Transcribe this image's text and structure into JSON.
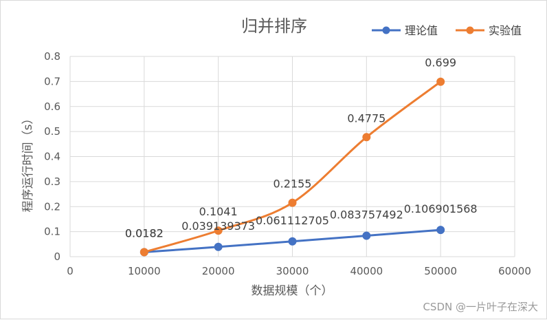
{
  "chart_data": {
    "type": "scatter",
    "title": "归并排序",
    "xlabel": "数据规模（个）",
    "ylabel": "程序运行时间（s）",
    "xlim": [
      0,
      60000
    ],
    "ylim": [
      0,
      0.8
    ],
    "x_ticks": [
      "0",
      "10000",
      "20000",
      "30000",
      "40000",
      "50000",
      "60000"
    ],
    "y_ticks": [
      "0",
      "0.1",
      "0.2",
      "0.3",
      "0.4",
      "0.5",
      "0.6",
      "0.7",
      "0.8"
    ],
    "grid": true,
    "legend_position": "top-right",
    "series": [
      {
        "name": "理论值",
        "color": "#4472c4",
        "x": [
          10000,
          20000,
          30000,
          40000,
          50000
        ],
        "y": [
          0.0182,
          0.039139373,
          0.061112705,
          0.083757492,
          0.106901568
        ],
        "labels": [
          "0.0182",
          "0.039139373",
          "0.061112705",
          "0.083757492",
          "0.106901568"
        ]
      },
      {
        "name": "实验值",
        "color": "#ed7d31",
        "x": [
          10000,
          20000,
          30000,
          40000,
          50000
        ],
        "y": [
          0.0182,
          0.1041,
          0.2155,
          0.4775,
          0.699
        ],
        "labels": [
          "0.0182",
          "0.1041",
          "0.2155",
          "0.4775",
          "0.699"
        ]
      }
    ]
  },
  "watermark": "CSDN @一片叶子在深大"
}
